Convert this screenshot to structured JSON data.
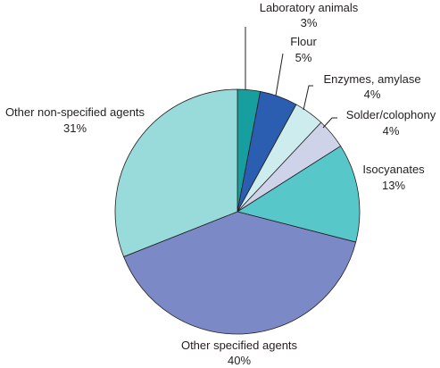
{
  "chart_data": {
    "type": "pie",
    "slices": [
      {
        "label": "Laboratory animals",
        "pct_label": "3%",
        "value": 3,
        "color": "#179e9e"
      },
      {
        "label": "Flour",
        "pct_label": "5%",
        "value": 5,
        "color": "#2b5db0"
      },
      {
        "label": "Enzymes, amylase",
        "pct_label": "4%",
        "value": 4,
        "color": "#cdeced"
      },
      {
        "label": "Solder/colophony",
        "pct_label": "4%",
        "value": 4,
        "color": "#cfd3ea"
      },
      {
        "label": "Isocyanates",
        "pct_label": "13%",
        "value": 13,
        "color": "#57c7ca"
      },
      {
        "label": "Other specified agents",
        "pct_label": "40%",
        "value": 40,
        "color": "#7b8ac6"
      },
      {
        "label": "Other non-specified agents",
        "pct_label": "31%",
        "value": 31,
        "color": "#99dadb"
      }
    ]
  }
}
